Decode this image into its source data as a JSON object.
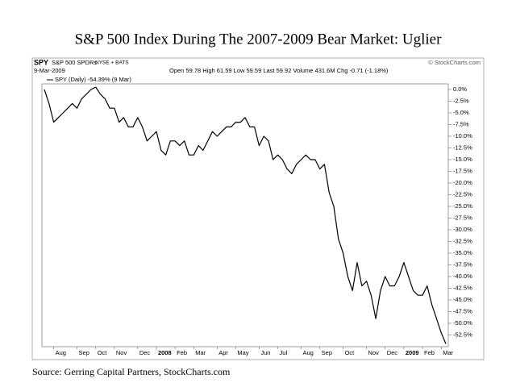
{
  "chart_data": {
    "type": "line",
    "title": "S&P 500 Index During The 2007-2009 Bear Market: Uglier",
    "symbol": "SPY",
    "name": "S&P 500 SPDRs",
    "exchange": "NYSE + BATS",
    "credit": "© StockCharts.com",
    "date": "9-Mar-2009",
    "quote": "Open 59.78 High 61.59 Low 59.59 Last 59.92 Volume 431.6M Chg -0.71 (-1.18%)",
    "source": "Source: Gerring Capital Partners, StockCharts.com",
    "grid": false,
    "categories": [
      null,
      null,
      "Aug",
      null,
      null,
      null,
      null,
      "Sep",
      null,
      null,
      null,
      "Oct",
      null,
      null,
      null,
      "Nov",
      null,
      null,
      null,
      null,
      "Dec",
      null,
      null,
      null,
      "2008",
      null,
      null,
      null,
      "Feb",
      null,
      null,
      null,
      "Mar",
      null,
      null,
      null,
      null,
      "Apr",
      null,
      null,
      null,
      "May",
      null,
      null,
      null,
      null,
      "Jun",
      null,
      null,
      null,
      "Jul",
      null,
      null,
      null,
      null,
      "Aug",
      null,
      null,
      null,
      "Sep",
      null,
      null,
      null,
      null,
      "Oct",
      null,
      null,
      null,
      null,
      "Nov",
      null,
      null,
      null,
      "Dec",
      null,
      null,
      null,
      "2009",
      null,
      null,
      null,
      "Feb",
      null,
      null,
      null,
      "Mar",
      null
    ],
    "series": [
      {
        "name": "SPY (Daily) -54.39% (9 Mar)",
        "color": "#000000",
        "values": [
          0,
          -3,
          -7,
          -6,
          -5,
          -4,
          -3,
          -4,
          -2,
          -1,
          0,
          0.5,
          -1,
          -2,
          -4,
          -4,
          -7,
          -6,
          -8,
          -8,
          -6,
          -8,
          -11,
          -10,
          -9,
          -13,
          -14,
          -11,
          -11,
          -12,
          -11,
          -14,
          -14,
          -12,
          -13,
          -11,
          -9,
          -10,
          -9,
          -8,
          -8,
          -7,
          -7,
          -6,
          -8,
          -8,
          -12,
          -10,
          -11,
          -15,
          -14,
          -15,
          -17,
          -18,
          -16,
          -15,
          -14,
          -15,
          -15,
          -17,
          -16,
          -22,
          -25,
          -32,
          -35,
          -40,
          -43,
          -37,
          -42,
          -41,
          -44,
          -49,
          -43,
          -40,
          -42,
          -42,
          -40,
          -37,
          -40,
          -43,
          -44,
          -44,
          -42,
          -46,
          -49,
          -52,
          -54.4
        ]
      }
    ],
    "ylim": [
      -55,
      1.2
    ],
    "yticks": [
      {
        "value": 0,
        "label": "0.0%"
      },
      {
        "value": -2.5,
        "label": "-2.5%"
      },
      {
        "value": -5,
        "label": "-5.0%"
      },
      {
        "value": -7.5,
        "label": "-7.5%"
      },
      {
        "value": -10,
        "label": "-10.0%"
      },
      {
        "value": -12.5,
        "label": "-12.5%"
      },
      {
        "value": -15,
        "label": "-15.0%"
      },
      {
        "value": -17.5,
        "label": "-17.5%"
      },
      {
        "value": -20,
        "label": "-20.0%"
      },
      {
        "value": -22.5,
        "label": "-22.5%"
      },
      {
        "value": -25,
        "label": "-25.0%"
      },
      {
        "value": -27.5,
        "label": "-27.5%"
      },
      {
        "value": -30,
        "label": "-30.0%"
      },
      {
        "value": -32.5,
        "label": "-32.5%"
      },
      {
        "value": -35,
        "label": "-35.0%"
      },
      {
        "value": -37.5,
        "label": "-37.5%"
      },
      {
        "value": -40,
        "label": "-40.0%"
      },
      {
        "value": -42.5,
        "label": "-42.5%"
      },
      {
        "value": -45,
        "label": "-45.0%"
      },
      {
        "value": -47.5,
        "label": "-47.5%"
      },
      {
        "value": -50,
        "label": "-50.0%"
      },
      {
        "value": -52.5,
        "label": "-52.5%"
      }
    ]
  }
}
